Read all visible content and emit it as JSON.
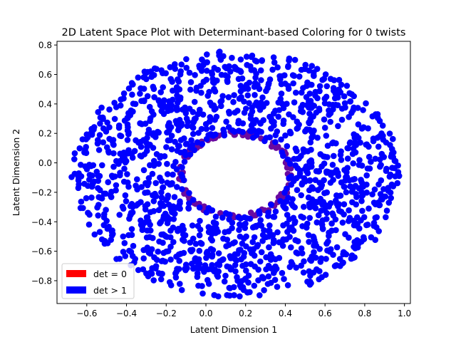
{
  "chart_data": {
    "type": "scatter",
    "title": "2D Latent Space Plot with Determinant-based Coloring for 0 twists",
    "xlabel": "Latent Dimension 1",
    "ylabel": "Latent Dimension 2",
    "xlim": [
      -0.75,
      1.03
    ],
    "ylim": [
      -0.955,
      0.825
    ],
    "x_ticks": [
      -0.6,
      -0.4,
      -0.2,
      0.0,
      0.2,
      0.4,
      0.6,
      0.8,
      1.0
    ],
    "x_tick_labels": [
      "−0.6",
      "−0.4",
      "−0.2",
      "0.0",
      "0.2",
      "0.4",
      "0.6",
      "0.8",
      "1.0"
    ],
    "y_ticks": [
      -0.8,
      -0.6,
      -0.4,
      -0.2,
      0.0,
      0.2,
      0.4,
      0.6,
      0.8
    ],
    "y_tick_labels": [
      "−0.8",
      "−0.6",
      "−0.4",
      "−0.2",
      "0.0",
      "0.2",
      "0.4",
      "0.6",
      "0.8"
    ],
    "grid": false,
    "legend_position": "lower-left",
    "legend": [
      {
        "label": "det = 0",
        "color": "#ff0000"
      },
      {
        "label": "det > 1",
        "color": "#0000ff"
      }
    ],
    "distribution": {
      "shape": "annulus",
      "center": [
        0.15,
        -0.08
      ],
      "inner_radius": 0.26,
      "outer_radius": 0.82,
      "y_scale": 1.02,
      "approx_point_count": 1500,
      "inner_edge_color": "#6a0aa0",
      "point_color": "#0000ff"
    }
  }
}
